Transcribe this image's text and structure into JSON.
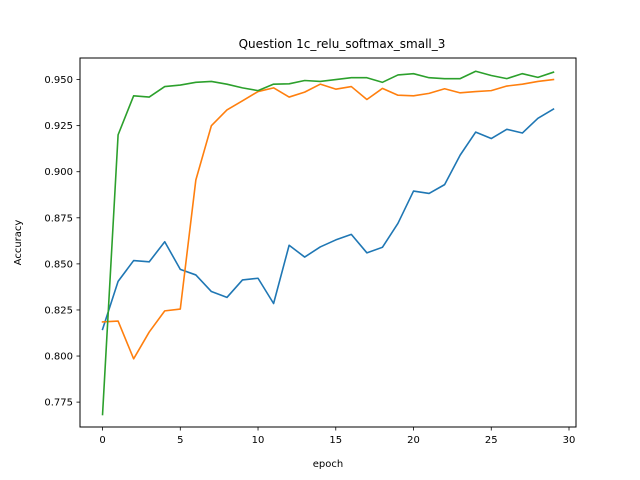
{
  "chart_data": {
    "type": "line",
    "title": "Question 1c_relu_softmax_small_3",
    "xlabel": "epoch",
    "ylabel": "Accuracy",
    "xlim": [
      -1.45,
      30.45
    ],
    "ylim": [
      0.7615,
      0.9617
    ],
    "x_ticks": [
      0,
      5,
      10,
      15,
      20,
      25,
      30
    ],
    "y_ticks": [
      0.775,
      0.8,
      0.825,
      0.85,
      0.875,
      0.9,
      0.925,
      0.95
    ],
    "y_tick_labels": [
      "0.775",
      "0.800",
      "0.825",
      "0.850",
      "0.875",
      "0.900",
      "0.925",
      "0.950"
    ],
    "grid": false,
    "legend": "none",
    "x": [
      0,
      1,
      2,
      3,
      4,
      5,
      6,
      7,
      8,
      9,
      10,
      11,
      12,
      13,
      14,
      15,
      16,
      17,
      18,
      19,
      20,
      21,
      22,
      23,
      24,
      25,
      26,
      27,
      28,
      29
    ],
    "series": [
      {
        "color": "#1f77b4",
        "values": [
          0.8145,
          0.8405,
          0.8518,
          0.8511,
          0.862,
          0.847,
          0.844,
          0.835,
          0.8318,
          0.8413,
          0.8422,
          0.8285,
          0.8601,
          0.8537,
          0.8592,
          0.863,
          0.866,
          0.856,
          0.859,
          0.872,
          0.8895,
          0.8882,
          0.893,
          0.909,
          0.9215,
          0.918,
          0.923,
          0.921,
          0.929,
          0.934
        ]
      },
      {
        "color": "#ff7f0e",
        "values": [
          0.8185,
          0.819,
          0.7985,
          0.813,
          0.8245,
          0.8255,
          0.8955,
          0.925,
          0.9335,
          0.9385,
          0.9435,
          0.9455,
          0.9405,
          0.9432,
          0.9475,
          0.9448,
          0.9462,
          0.9392,
          0.9452,
          0.9415,
          0.9412,
          0.9425,
          0.945,
          0.9428,
          0.9435,
          0.944,
          0.9465,
          0.9475,
          0.949,
          0.95
        ]
      },
      {
        "color": "#2ca02c",
        "values": [
          0.7683,
          0.92,
          0.9412,
          0.9405,
          0.9462,
          0.947,
          0.9485,
          0.949,
          0.9475,
          0.9455,
          0.944,
          0.9475,
          0.9477,
          0.9495,
          0.949,
          0.95,
          0.951,
          0.951,
          0.9485,
          0.9525,
          0.9532,
          0.951,
          0.9505,
          0.9505,
          0.9545,
          0.9522,
          0.9505,
          0.9532,
          0.9512,
          0.954
        ]
      }
    ]
  }
}
